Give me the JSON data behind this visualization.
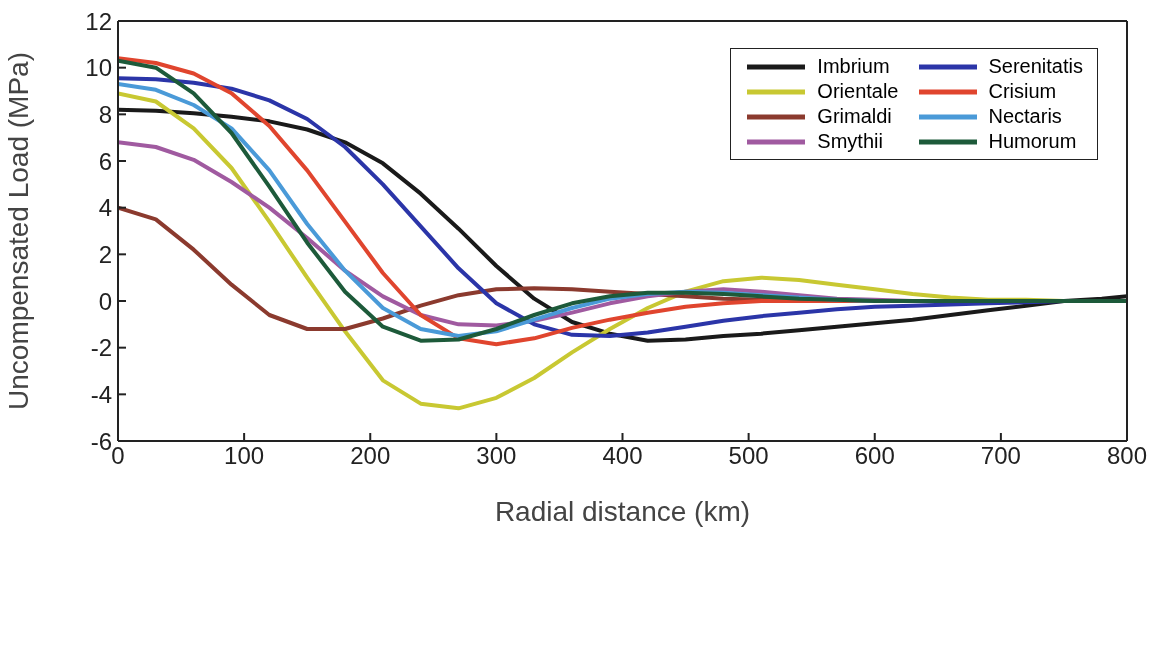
{
  "chart_data": {
    "type": "line",
    "xlabel": "Radial distance (km)",
    "ylabel": "Uncompensated Load (MPa)",
    "x": [
      0,
      30,
      60,
      90,
      120,
      150,
      180,
      210,
      240,
      270,
      300,
      330,
      360,
      390,
      420,
      450,
      480,
      510,
      540,
      570,
      600,
      630,
      660,
      690,
      720,
      750,
      780,
      800
    ],
    "xlim": [
      0,
      800
    ],
    "xticks": [
      0,
      100,
      200,
      300,
      400,
      500,
      600,
      700,
      800
    ],
    "ylim": [
      -6,
      12
    ],
    "yticks": [
      -6,
      -4,
      -2,
      0,
      2,
      4,
      6,
      8,
      10,
      12
    ],
    "grid": false,
    "legend": "top right",
    "marker": "none",
    "line_style": "solid",
    "series": [
      {
        "name": "Imbrium",
        "color": "#1a1a1a",
        "values": [
          8.2,
          8.15,
          8.05,
          7.9,
          7.7,
          7.35,
          6.8,
          5.9,
          4.6,
          3.1,
          1.5,
          0.1,
          -0.9,
          -1.4,
          -1.7,
          -1.65,
          -1.5,
          -1.4,
          -1.25,
          -1.1,
          -0.95,
          -0.8,
          -0.6,
          -0.4,
          -0.2,
          0,
          0.1,
          0.2
        ]
      },
      {
        "name": "Orientale",
        "color": "#c8c832",
        "values": [
          8.9,
          8.55,
          7.4,
          5.7,
          3.4,
          1.0,
          -1.3,
          -3.4,
          -4.4,
          -4.6,
          -4.15,
          -3.3,
          -2.2,
          -1.2,
          -0.3,
          0.4,
          0.85,
          1.0,
          0.9,
          0.7,
          0.5,
          0.3,
          0.15,
          0.05,
          0.05,
          0,
          0,
          0
        ]
      },
      {
        "name": "Grimaldi",
        "color": "#8b3a2e",
        "values": [
          4.0,
          3.5,
          2.2,
          0.7,
          -0.6,
          -1.2,
          -1.2,
          -0.75,
          -0.2,
          0.25,
          0.5,
          0.55,
          0.5,
          0.4,
          0.3,
          0.2,
          0.1,
          0.05,
          0,
          0,
          0,
          0,
          null,
          null,
          null,
          null,
          null,
          null
        ]
      },
      {
        "name": "Smythii",
        "color": "#a05aa0",
        "values": [
          6.8,
          6.6,
          6.05,
          5.1,
          4.0,
          2.7,
          1.3,
          0.2,
          -0.6,
          -1.0,
          -1.05,
          -0.85,
          -0.5,
          -0.1,
          0.2,
          0.4,
          0.5,
          0.4,
          0.25,
          0.1,
          0.05,
          0,
          0,
          0,
          0,
          0,
          0,
          0
        ]
      },
      {
        "name": "Serenitatis",
        "color": "#2b35a8",
        "values": [
          9.55,
          9.5,
          9.35,
          9.1,
          8.6,
          7.8,
          6.6,
          5.0,
          3.2,
          1.4,
          -0.1,
          -1.0,
          -1.45,
          -1.5,
          -1.35,
          -1.1,
          -0.85,
          -0.65,
          -0.5,
          -0.35,
          -0.25,
          -0.2,
          -0.15,
          -0.1,
          -0.05,
          0,
          0,
          0
        ]
      },
      {
        "name": "Crisium",
        "color": "#e0452e",
        "values": [
          10.4,
          10.2,
          9.75,
          8.9,
          7.5,
          5.6,
          3.4,
          1.2,
          -0.6,
          -1.6,
          -1.85,
          -1.6,
          -1.15,
          -0.8,
          -0.5,
          -0.25,
          -0.1,
          0,
          0,
          0,
          0,
          null,
          null,
          null,
          null,
          null,
          null,
          null
        ]
      },
      {
        "name": "Nectaris",
        "color": "#4a9ad8",
        "values": [
          9.3,
          9.05,
          8.4,
          7.4,
          5.6,
          3.3,
          1.3,
          -0.3,
          -1.2,
          -1.5,
          -1.3,
          -0.8,
          -0.3,
          0.1,
          0.3,
          0.4,
          0.35,
          0.25,
          0.15,
          0.05,
          0,
          0,
          0,
          0,
          0,
          0,
          null,
          null
        ]
      },
      {
        "name": "Humorum",
        "color": "#1d5a3a",
        "values": [
          10.3,
          10.0,
          8.9,
          7.2,
          4.9,
          2.5,
          0.4,
          -1.1,
          -1.7,
          -1.65,
          -1.2,
          -0.6,
          -0.1,
          0.2,
          0.35,
          0.35,
          0.3,
          0.2,
          0.1,
          0.05,
          0,
          0,
          0,
          0,
          0,
          0,
          0,
          0
        ]
      }
    ]
  }
}
